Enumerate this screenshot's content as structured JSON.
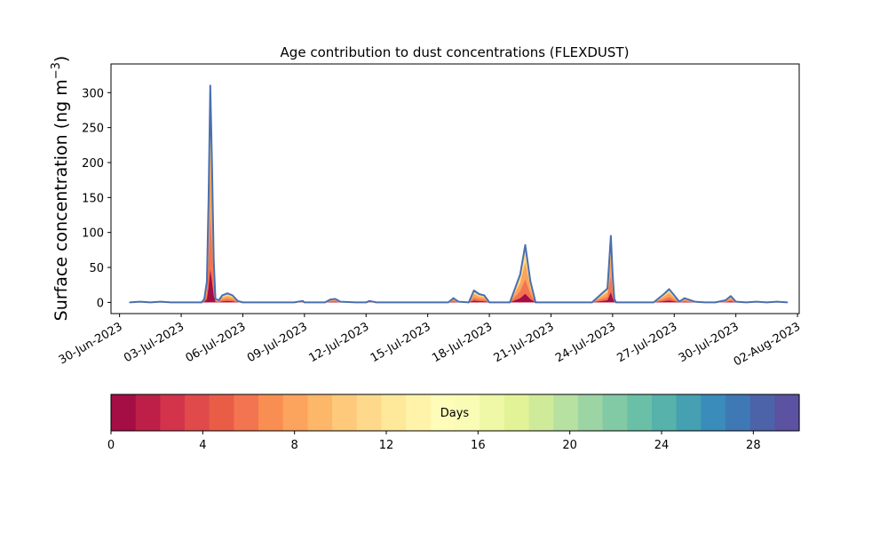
{
  "chart_data": {
    "type": "area",
    "title": "Age contribution to dust concentrations (FLEXDUST)",
    "ylabel_main": "Surface concentration (ng m",
    "ylabel_sup": "−3",
    "ylabel_close": ")",
    "xlabel": "",
    "ylim": [
      -16,
      341
    ],
    "x_axis": {
      "range": [
        "2023-06-29T14:00",
        "2023-08-02T02:00"
      ],
      "ticks": [
        "2023-06-30",
        "2023-07-03",
        "2023-07-06",
        "2023-07-09",
        "2023-07-12",
        "2023-07-15",
        "2023-07-18",
        "2023-07-21",
        "2023-07-24",
        "2023-07-27",
        "2023-07-30",
        "2023-08-02"
      ],
      "tick_labels": [
        "30-Jun-2023",
        "03-Jul-2023",
        "06-Jul-2023",
        "09-Jul-2023",
        "12-Jul-2023",
        "15-Jul-2023",
        "18-Jul-2023",
        "21-Jul-2023",
        "24-Jul-2023",
        "27-Jul-2023",
        "30-Jul-2023",
        "02-Aug-2023"
      ]
    },
    "y_ticks": [
      0,
      50,
      100,
      150,
      200,
      250,
      300
    ],
    "line_color": "#4a6fae",
    "series": [
      {
        "x": [
          "2023-06-30T12:00",
          "2023-07-01T00:00",
          "2023-07-01T12:00",
          "2023-07-02T00:00",
          "2023-07-02T12:00",
          "2023-07-03T00:00",
          "2023-07-03T12:00",
          "2023-07-04T00:00",
          "2023-07-04T03:00",
          "2023-07-04T06:00",
          "2023-07-04T08:00",
          "2023-07-04T10:00",
          "2023-07-04T12:00",
          "2023-07-04T14:00",
          "2023-07-04T16:00",
          "2023-07-04T20:00",
          "2023-07-05T00:00",
          "2023-07-05T06:00",
          "2023-07-05T12:00",
          "2023-07-05T18:00",
          "2023-07-06T00:00",
          "2023-07-06T12:00",
          "2023-07-07T12:00",
          "2023-07-08T12:00",
          "2023-07-08T22:00",
          "2023-07-09T00:00",
          "2023-07-09T06:00",
          "2023-07-10T00:00",
          "2023-07-10T06:00",
          "2023-07-10T12:00",
          "2023-07-10T18:00",
          "2023-07-11T12:00",
          "2023-07-12T00:00",
          "2023-07-12T04:00",
          "2023-07-12T12:00",
          "2023-07-13T12:00",
          "2023-07-14T12:00",
          "2023-07-15T12:00",
          "2023-07-16T00:00",
          "2023-07-16T06:00",
          "2023-07-16T12:00",
          "2023-07-17T00:00",
          "2023-07-17T06:00",
          "2023-07-17T12:00",
          "2023-07-17T18:00",
          "2023-07-18T00:00",
          "2023-07-18T06:00",
          "2023-07-18T12:00",
          "2023-07-19T00:00",
          "2023-07-19T12:00",
          "2023-07-19T18:00",
          "2023-07-20T00:00",
          "2023-07-20T06:00",
          "2023-07-20T12:00",
          "2023-07-21T00:00",
          "2023-07-22T00:00",
          "2023-07-23T00:00",
          "2023-07-23T18:00",
          "2023-07-23T22:00",
          "2023-07-24T00:00",
          "2023-07-24T02:00",
          "2023-07-24T04:00",
          "2023-07-24T08:00",
          "2023-07-24T12:00",
          "2023-07-25T00:00",
          "2023-07-26T00:00",
          "2023-07-26T12:00",
          "2023-07-26T18:00",
          "2023-07-27T00:00",
          "2023-07-27T06:00",
          "2023-07-27T12:00",
          "2023-07-28T00:00",
          "2023-07-28T12:00",
          "2023-07-29T00:00",
          "2023-07-29T12:00",
          "2023-07-29T18:00",
          "2023-07-30T00:00",
          "2023-07-30T12:00",
          "2023-07-31T00:00",
          "2023-07-31T12:00",
          "2023-08-01T00:00",
          "2023-08-01T12:00"
        ],
        "values": [
          0,
          1,
          0,
          1,
          0,
          0,
          0,
          0,
          5,
          30,
          150,
          310,
          200,
          60,
          5,
          3,
          10,
          13,
          10,
          2,
          0,
          0,
          0,
          0,
          2,
          0,
          0,
          0,
          4,
          5,
          1,
          0,
          0,
          2,
          0,
          0,
          0,
          0,
          0,
          6,
          1,
          0,
          17,
          12,
          10,
          0,
          0,
          0,
          0,
          40,
          82,
          30,
          0,
          0,
          0,
          0,
          0,
          20,
          95,
          40,
          5,
          0,
          0,
          0,
          0,
          0,
          12,
          19,
          10,
          1,
          6,
          1,
          0,
          0,
          3,
          9,
          1,
          0,
          1,
          0,
          1,
          0
        ]
      }
    ],
    "colorbar": {
      "label": "Days",
      "range": [
        0,
        30
      ],
      "ticks": [
        0,
        4,
        8,
        12,
        16,
        20,
        24,
        28
      ],
      "colors": [
        "#a50d45",
        "#bd1f48",
        "#d3344c",
        "#e14a4b",
        "#e95d47",
        "#f37450",
        "#f98e52",
        "#fca35d",
        "#fdb769",
        "#fec97a",
        "#fed98b",
        "#fee89a",
        "#fff3aa",
        "#fffbb9",
        "#f9fcb5",
        "#eff8a6",
        "#e2f397",
        "#cfeb9a",
        "#b7e1a1",
        "#9cd4a4",
        "#82c9a5",
        "#6ac0a6",
        "#56b2ab",
        "#45a0b2",
        "#3a8cbb",
        "#3e79b5",
        "#4c63aa",
        "#5b52a1"
      ]
    }
  }
}
